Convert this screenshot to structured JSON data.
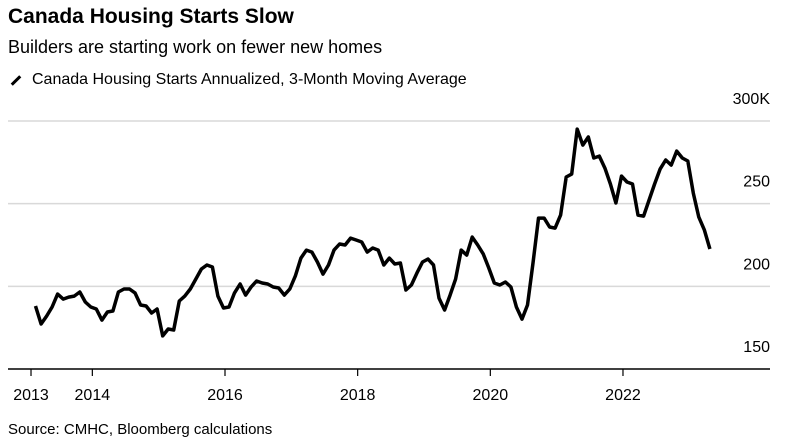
{
  "chart_data": {
    "type": "line",
    "title": "Canada Housing Starts Slow",
    "subtitle": "Builders are starting work on fewer new homes",
    "legend": [
      "Canada Housing Starts Annualized, 3-Month Moving Average"
    ],
    "legend_position": "top-left",
    "source": "Source: CMHC, Bloomberg calculations",
    "xlabel": "",
    "ylabel": "",
    "x_start": "2013-02",
    "frequency": "monthly",
    "x_ticks": [
      2013,
      2014,
      2016,
      2018,
      2020,
      2022
    ],
    "x_tick_labels": [
      "2013",
      "2014",
      "2016",
      "2018",
      "2020",
      "2022"
    ],
    "y_ticks": [
      150,
      200,
      250,
      300
    ],
    "y_tick_labels": [
      "150",
      "200",
      "250",
      "300K"
    ],
    "ylim": [
      150,
      300
    ],
    "grid": true,
    "color": "#000000",
    "series": [
      {
        "name": "Canada Housing Starts Annualized, 3-Month Moving Average",
        "values": [
          188.1,
          177.2,
          182.0,
          187.5,
          195.3,
          192.3,
          193.5,
          194.1,
          196.6,
          190.5,
          187.5,
          186.3,
          179.6,
          184.5,
          185.1,
          196.6,
          198.4,
          198.4,
          196.0,
          188.7,
          188.1,
          183.9,
          186.3,
          170.0,
          174.2,
          173.6,
          191.1,
          194.1,
          198.4,
          204.4,
          210.5,
          212.9,
          211.7,
          194.1,
          186.9,
          187.5,
          196.0,
          201.4,
          194.7,
          199.6,
          203.2,
          202.0,
          201.4,
          199.6,
          199.0,
          194.7,
          198.4,
          206.2,
          217.1,
          221.9,
          220.7,
          214.7,
          207.4,
          212.9,
          221.9,
          225.6,
          225.0,
          229.2,
          228.0,
          226.8,
          220.7,
          223.2,
          221.9,
          212.9,
          217.1,
          213.5,
          214.1,
          197.8,
          200.8,
          208.0,
          214.7,
          216.5,
          212.9,
          192.9,
          185.7,
          194.7,
          204.4,
          221.9,
          218.9,
          229.8,
          225.0,
          219.5,
          211.1,
          202.0,
          200.8,
          202.6,
          199.6,
          187.5,
          180.2,
          188.7,
          214.1,
          241.3,
          241.3,
          235.9,
          235.2,
          243.1,
          266.1,
          267.9,
          295.1,
          285.4,
          290.3,
          277.6,
          278.8,
          271.5,
          261.9,
          250.4,
          266.7,
          263.1,
          261.9,
          243.1,
          242.5,
          252.2,
          261.9,
          270.9,
          276.4,
          273.3,
          281.8,
          277.6,
          275.8,
          256.4,
          241.9,
          234.0,
          222.6
        ]
      }
    ]
  }
}
